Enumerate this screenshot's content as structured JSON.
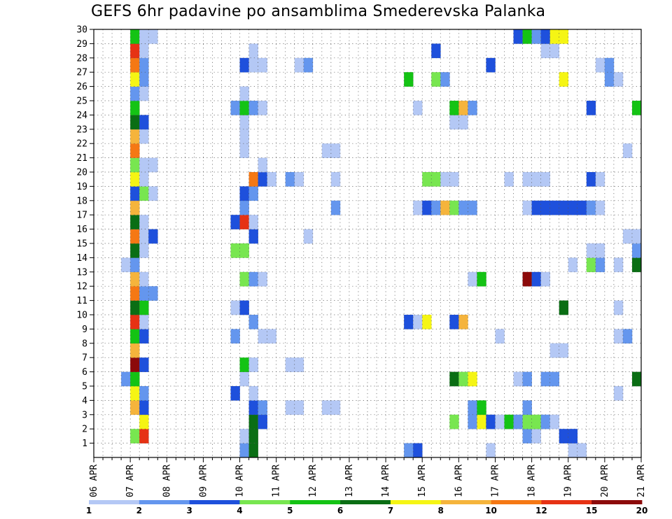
{
  "chart_data": {
    "type": "heatmap",
    "title": "GEFS 6hr padavine po ansamblima Smederevska Palanka",
    "xlabel": "",
    "ylabel": "",
    "grid": true,
    "x_range_days": [
      0,
      15
    ],
    "y_range": [
      0,
      30
    ],
    "x_ticks": [
      {
        "day": 0,
        "label": "06 APR"
      },
      {
        "day": 1,
        "label": "07 APR"
      },
      {
        "day": 2,
        "label": "08 APR"
      },
      {
        "day": 3,
        "label": "09 APR"
      },
      {
        "day": 4,
        "label": "10 APR"
      },
      {
        "day": 5,
        "label": "11 APR"
      },
      {
        "day": 6,
        "label": "12 APR"
      },
      {
        "day": 7,
        "label": "13 APR"
      },
      {
        "day": 8,
        "label": "14 APR"
      },
      {
        "day": 9,
        "label": "15 APR"
      },
      {
        "day": 10,
        "label": "16 APR"
      },
      {
        "day": 11,
        "label": "17 APR"
      },
      {
        "day": 12,
        "label": "18 APR"
      },
      {
        "day": 13,
        "label": "19 APR"
      },
      {
        "day": 14,
        "label": "20 APR"
      },
      {
        "day": 15,
        "label": "21 APR"
      }
    ],
    "y_ticks": [
      "1",
      "2",
      "3",
      "4",
      "5",
      "6",
      "7",
      "8",
      "9",
      "10",
      "11",
      "12",
      "13",
      "14",
      "15",
      "16",
      "17",
      "18",
      "19",
      "20",
      "21",
      "22",
      "23",
      "24",
      "25",
      "26",
      "27",
      "28",
      "29",
      "30"
    ],
    "legend": {
      "placement": "bottom",
      "colors": [
        "#b4c8f5",
        "#6496ee",
        "#1e50dc",
        "#78e650",
        "#14c314",
        "#0a6e14",
        "#f5f514",
        "#f5b43c",
        "#f57814",
        "#e63214",
        "#8c0a0a"
      ],
      "labels": [
        "1",
        "2",
        "3",
        "4",
        "5",
        "6",
        "7",
        "8",
        "10",
        "12",
        "15",
        "20"
      ]
    },
    "unit_step_hours": 6,
    "cells": [
      {
        "x": 4.0,
        "y": 0,
        "w": 1,
        "c": 1
      },
      {
        "x": 4.25,
        "y": 0,
        "w": 1,
        "c": 5
      },
      {
        "x": 8.5,
        "y": 0,
        "w": 1,
        "c": 1
      },
      {
        "x": 8.75,
        "y": 0,
        "w": 1,
        "c": 2
      },
      {
        "x": 10.75,
        "y": 0,
        "w": 1,
        "c": 0
      },
      {
        "x": 13.0,
        "y": 0,
        "w": 2,
        "c": 0
      },
      {
        "x": 1.0,
        "y": 1,
        "w": 1,
        "c": 3
      },
      {
        "x": 1.25,
        "y": 1,
        "w": 1,
        "c": 9
      },
      {
        "x": 4.0,
        "y": 1,
        "w": 1,
        "c": 0
      },
      {
        "x": 4.25,
        "y": 1,
        "w": 1,
        "c": 5
      },
      {
        "x": 11.75,
        "y": 1,
        "w": 1,
        "c": 1
      },
      {
        "x": 12.0,
        "y": 1,
        "w": 1,
        "c": 0
      },
      {
        "x": 12.75,
        "y": 1,
        "w": 2,
        "c": 2
      },
      {
        "x": 1.25,
        "y": 2,
        "w": 1,
        "c": 6
      },
      {
        "x": 4.25,
        "y": 2,
        "w": 1,
        "c": 5
      },
      {
        "x": 4.5,
        "y": 2,
        "w": 1,
        "c": 2
      },
      {
        "x": 9.75,
        "y": 2,
        "w": 1,
        "c": 3
      },
      {
        "x": 10.25,
        "y": 2,
        "w": 1,
        "c": 1
      },
      {
        "x": 10.5,
        "y": 2,
        "w": 1,
        "c": 6
      },
      {
        "x": 10.75,
        "y": 2,
        "w": 1,
        "c": 2
      },
      {
        "x": 11.0,
        "y": 2,
        "w": 1,
        "c": 0
      },
      {
        "x": 11.25,
        "y": 2,
        "w": 1,
        "c": 4
      },
      {
        "x": 11.5,
        "y": 2,
        "w": 1,
        "c": 1
      },
      {
        "x": 11.75,
        "y": 2,
        "w": 2,
        "c": 3
      },
      {
        "x": 12.25,
        "y": 2,
        "w": 1,
        "c": 1
      },
      {
        "x": 12.5,
        "y": 2,
        "w": 1,
        "c": 0
      },
      {
        "x": 1.0,
        "y": 3,
        "w": 1,
        "c": 7
      },
      {
        "x": 1.25,
        "y": 3,
        "w": 1,
        "c": 2
      },
      {
        "x": 4.25,
        "y": 3,
        "w": 1,
        "c": 2
      },
      {
        "x": 4.5,
        "y": 3,
        "w": 1,
        "c": 1
      },
      {
        "x": 5.25,
        "y": 3,
        "w": 2,
        "c": 0
      },
      {
        "x": 6.25,
        "y": 3,
        "w": 2,
        "c": 0
      },
      {
        "x": 10.25,
        "y": 3,
        "w": 1,
        "c": 1
      },
      {
        "x": 10.5,
        "y": 3,
        "w": 1,
        "c": 4
      },
      {
        "x": 11.75,
        "y": 3,
        "w": 1,
        "c": 1
      },
      {
        "x": 1.0,
        "y": 4,
        "w": 1,
        "c": 6
      },
      {
        "x": 1.25,
        "y": 4,
        "w": 1,
        "c": 1
      },
      {
        "x": 3.75,
        "y": 4,
        "w": 1,
        "c": 2
      },
      {
        "x": 4.25,
        "y": 4,
        "w": 1,
        "c": 0
      },
      {
        "x": 14.25,
        "y": 4,
        "w": 1,
        "c": 0
      },
      {
        "x": 0.75,
        "y": 5,
        "w": 1,
        "c": 1
      },
      {
        "x": 1.0,
        "y": 5,
        "w": 1,
        "c": 4
      },
      {
        "x": 4.0,
        "y": 5,
        "w": 1,
        "c": 0
      },
      {
        "x": 9.75,
        "y": 5,
        "w": 1,
        "c": 5
      },
      {
        "x": 10.0,
        "y": 5,
        "w": 1,
        "c": 3
      },
      {
        "x": 10.25,
        "y": 5,
        "w": 1,
        "c": 6
      },
      {
        "x": 11.5,
        "y": 5,
        "w": 1,
        "c": 0
      },
      {
        "x": 11.75,
        "y": 5,
        "w": 1,
        "c": 1
      },
      {
        "x": 12.25,
        "y": 5,
        "w": 2,
        "c": 1
      },
      {
        "x": 14.75,
        "y": 5,
        "w": 1,
        "c": 5
      },
      {
        "x": 1.0,
        "y": 6,
        "w": 1,
        "c": 10
      },
      {
        "x": 1.25,
        "y": 6,
        "w": 1,
        "c": 2
      },
      {
        "x": 4.0,
        "y": 6,
        "w": 1,
        "c": 4
      },
      {
        "x": 4.25,
        "y": 6,
        "w": 1,
        "c": 0
      },
      {
        "x": 5.25,
        "y": 6,
        "w": 2,
        "c": 0
      },
      {
        "x": 1.0,
        "y": 7,
        "w": 1,
        "c": 7
      },
      {
        "x": 12.5,
        "y": 7,
        "w": 2,
        "c": 0
      },
      {
        "x": 1.0,
        "y": 8,
        "w": 1,
        "c": 4
      },
      {
        "x": 1.25,
        "y": 8,
        "w": 1,
        "c": 2
      },
      {
        "x": 3.75,
        "y": 8,
        "w": 1,
        "c": 1
      },
      {
        "x": 4.5,
        "y": 8,
        "w": 2,
        "c": 0
      },
      {
        "x": 11.0,
        "y": 8,
        "w": 1,
        "c": 0
      },
      {
        "x": 14.25,
        "y": 8,
        "w": 1,
        "c": 0
      },
      {
        "x": 14.5,
        "y": 8,
        "w": 1,
        "c": 1
      },
      {
        "x": 1.0,
        "y": 9,
        "w": 1,
        "c": 9
      },
      {
        "x": 1.25,
        "y": 9,
        "w": 1,
        "c": 0
      },
      {
        "x": 4.25,
        "y": 9,
        "w": 1,
        "c": 1
      },
      {
        "x": 8.5,
        "y": 9,
        "w": 1,
        "c": 2
      },
      {
        "x": 8.75,
        "y": 9,
        "w": 1,
        "c": 0
      },
      {
        "x": 9.0,
        "y": 9,
        "w": 1,
        "c": 6
      },
      {
        "x": 9.75,
        "y": 9,
        "w": 1,
        "c": 2
      },
      {
        "x": 10.0,
        "y": 9,
        "w": 1,
        "c": 7
      },
      {
        "x": 1.0,
        "y": 10,
        "w": 1,
        "c": 5
      },
      {
        "x": 1.25,
        "y": 10,
        "w": 1,
        "c": 4
      },
      {
        "x": 3.75,
        "y": 10,
        "w": 1,
        "c": 0
      },
      {
        "x": 4.0,
        "y": 10,
        "w": 1,
        "c": 2
      },
      {
        "x": 12.75,
        "y": 10,
        "w": 1,
        "c": 5
      },
      {
        "x": 14.25,
        "y": 10,
        "w": 1,
        "c": 0
      },
      {
        "x": 1.0,
        "y": 11,
        "w": 1,
        "c": 8
      },
      {
        "x": 1.25,
        "y": 11,
        "w": 2,
        "c": 1
      },
      {
        "x": 1.0,
        "y": 12,
        "w": 1,
        "c": 7
      },
      {
        "x": 1.25,
        "y": 12,
        "w": 1,
        "c": 0
      },
      {
        "x": 4.0,
        "y": 12,
        "w": 1,
        "c": 3
      },
      {
        "x": 4.25,
        "y": 12,
        "w": 1,
        "c": 1
      },
      {
        "x": 4.5,
        "y": 12,
        "w": 1,
        "c": 0
      },
      {
        "x": 10.25,
        "y": 12,
        "w": 1,
        "c": 0
      },
      {
        "x": 10.5,
        "y": 12,
        "w": 1,
        "c": 4
      },
      {
        "x": 11.75,
        "y": 12,
        "w": 1,
        "c": 10
      },
      {
        "x": 12.0,
        "y": 12,
        "w": 1,
        "c": 2
      },
      {
        "x": 12.25,
        "y": 12,
        "w": 1,
        "c": 0
      },
      {
        "x": 0.75,
        "y": 13,
        "w": 1,
        "c": 0
      },
      {
        "x": 1.0,
        "y": 13,
        "w": 1,
        "c": 1
      },
      {
        "x": 13.0,
        "y": 13,
        "w": 1,
        "c": 0
      },
      {
        "x": 13.5,
        "y": 13,
        "w": 1,
        "c": 3
      },
      {
        "x": 13.75,
        "y": 13,
        "w": 1,
        "c": 1
      },
      {
        "x": 14.25,
        "y": 13,
        "w": 1,
        "c": 0
      },
      {
        "x": 14.75,
        "y": 13,
        "w": 1,
        "c": 5
      },
      {
        "x": 1.0,
        "y": 14,
        "w": 1,
        "c": 5
      },
      {
        "x": 1.25,
        "y": 14,
        "w": 1,
        "c": 0
      },
      {
        "x": 3.75,
        "y": 14,
        "w": 2,
        "c": 3
      },
      {
        "x": 13.5,
        "y": 14,
        "w": 2,
        "c": 0
      },
      {
        "x": 14.75,
        "y": 14,
        "w": 1,
        "c": 1
      },
      {
        "x": 1.0,
        "y": 15,
        "w": 1,
        "c": 8
      },
      {
        "x": 1.25,
        "y": 15,
        "w": 1,
        "c": 0
      },
      {
        "x": 1.5,
        "y": 15,
        "w": 1,
        "c": 2
      },
      {
        "x": 4.25,
        "y": 15,
        "w": 1,
        "c": 2
      },
      {
        "x": 5.75,
        "y": 15,
        "w": 1,
        "c": 0
      },
      {
        "x": 14.5,
        "y": 15,
        "w": 2,
        "c": 0
      },
      {
        "x": 1.0,
        "y": 16,
        "w": 1,
        "c": 5
      },
      {
        "x": 1.25,
        "y": 16,
        "w": 1,
        "c": 0
      },
      {
        "x": 3.75,
        "y": 16,
        "w": 1,
        "c": 2
      },
      {
        "x": 4.0,
        "y": 16,
        "w": 1,
        "c": 9
      },
      {
        "x": 4.25,
        "y": 16,
        "w": 1,
        "c": 0
      },
      {
        "x": 1.0,
        "y": 17,
        "w": 1,
        "c": 7
      },
      {
        "x": 4.0,
        "y": 17,
        "w": 1,
        "c": 1
      },
      {
        "x": 6.5,
        "y": 17,
        "w": 1,
        "c": 1
      },
      {
        "x": 8.75,
        "y": 17,
        "w": 1,
        "c": 0
      },
      {
        "x": 9.0,
        "y": 17,
        "w": 1,
        "c": 2
      },
      {
        "x": 9.25,
        "y": 17,
        "w": 1,
        "c": 1
      },
      {
        "x": 9.5,
        "y": 17,
        "w": 1,
        "c": 7
      },
      {
        "x": 9.75,
        "y": 17,
        "w": 1,
        "c": 3
      },
      {
        "x": 10.0,
        "y": 17,
        "w": 2,
        "c": 1
      },
      {
        "x": 11.75,
        "y": 17,
        "w": 1,
        "c": 0
      },
      {
        "x": 12.0,
        "y": 17,
        "w": 6,
        "c": 2
      },
      {
        "x": 13.5,
        "y": 17,
        "w": 1,
        "c": 1
      },
      {
        "x": 13.75,
        "y": 17,
        "w": 1,
        "c": 0
      },
      {
        "x": 1.0,
        "y": 18,
        "w": 1,
        "c": 2
      },
      {
        "x": 1.25,
        "y": 18,
        "w": 1,
        "c": 3
      },
      {
        "x": 1.5,
        "y": 18,
        "w": 1,
        "c": 0
      },
      {
        "x": 4.0,
        "y": 18,
        "w": 1,
        "c": 2
      },
      {
        "x": 4.25,
        "y": 18,
        "w": 1,
        "c": 1
      },
      {
        "x": 1.0,
        "y": 19,
        "w": 1,
        "c": 6
      },
      {
        "x": 1.25,
        "y": 19,
        "w": 1,
        "c": 0
      },
      {
        "x": 4.25,
        "y": 19,
        "w": 1,
        "c": 8
      },
      {
        "x": 4.5,
        "y": 19,
        "w": 1,
        "c": 2
      },
      {
        "x": 4.75,
        "y": 19,
        "w": 1,
        "c": 0
      },
      {
        "x": 5.25,
        "y": 19,
        "w": 1,
        "c": 1
      },
      {
        "x": 5.5,
        "y": 19,
        "w": 1,
        "c": 0
      },
      {
        "x": 6.5,
        "y": 19,
        "w": 1,
        "c": 0
      },
      {
        "x": 9.0,
        "y": 19,
        "w": 2,
        "c": 3
      },
      {
        "x": 9.5,
        "y": 19,
        "w": 2,
        "c": 0
      },
      {
        "x": 11.25,
        "y": 19,
        "w": 1,
        "c": 0
      },
      {
        "x": 11.75,
        "y": 19,
        "w": 3,
        "c": 0
      },
      {
        "x": 13.5,
        "y": 19,
        "w": 1,
        "c": 2
      },
      {
        "x": 13.75,
        "y": 19,
        "w": 1,
        "c": 0
      },
      {
        "x": 1.0,
        "y": 20,
        "w": 1,
        "c": 3
      },
      {
        "x": 1.25,
        "y": 20,
        "w": 2,
        "c": 0
      },
      {
        "x": 4.5,
        "y": 20,
        "w": 1,
        "c": 0
      },
      {
        "x": 1.0,
        "y": 21,
        "w": 1,
        "c": 8
      },
      {
        "x": 4.0,
        "y": 21,
        "w": 1,
        "c": 0
      },
      {
        "x": 6.25,
        "y": 21,
        "w": 2,
        "c": 0
      },
      {
        "x": 14.5,
        "y": 21,
        "w": 1,
        "c": 0
      },
      {
        "x": 1.0,
        "y": 22,
        "w": 1,
        "c": 7
      },
      {
        "x": 1.25,
        "y": 22,
        "w": 1,
        "c": 0
      },
      {
        "x": 4.0,
        "y": 22,
        "w": 1,
        "c": 0
      },
      {
        "x": 1.0,
        "y": 23,
        "w": 1,
        "c": 5
      },
      {
        "x": 1.25,
        "y": 23,
        "w": 1,
        "c": 2
      },
      {
        "x": 4.0,
        "y": 23,
        "w": 1,
        "c": 0
      },
      {
        "x": 9.75,
        "y": 23,
        "w": 2,
        "c": 0
      },
      {
        "x": 1.0,
        "y": 24,
        "w": 1,
        "c": 4
      },
      {
        "x": 3.75,
        "y": 24,
        "w": 1,
        "c": 1
      },
      {
        "x": 4.0,
        "y": 24,
        "w": 1,
        "c": 4
      },
      {
        "x": 4.25,
        "y": 24,
        "w": 1,
        "c": 1
      },
      {
        "x": 4.5,
        "y": 24,
        "w": 1,
        "c": 0
      },
      {
        "x": 8.75,
        "y": 24,
        "w": 1,
        "c": 0
      },
      {
        "x": 9.75,
        "y": 24,
        "w": 1,
        "c": 4
      },
      {
        "x": 10.0,
        "y": 24,
        "w": 1,
        "c": 7
      },
      {
        "x": 10.25,
        "y": 24,
        "w": 1,
        "c": 1
      },
      {
        "x": 13.5,
        "y": 24,
        "w": 1,
        "c": 2
      },
      {
        "x": 14.75,
        "y": 24,
        "w": 1,
        "c": 4
      },
      {
        "x": 1.0,
        "y": 25,
        "w": 1,
        "c": 1
      },
      {
        "x": 1.25,
        "y": 25,
        "w": 1,
        "c": 0
      },
      {
        "x": 4.0,
        "y": 25,
        "w": 1,
        "c": 0
      },
      {
        "x": 1.0,
        "y": 26,
        "w": 1,
        "c": 6
      },
      {
        "x": 1.25,
        "y": 26,
        "w": 1,
        "c": 1
      },
      {
        "x": 8.5,
        "y": 26,
        "w": 1,
        "c": 4
      },
      {
        "x": 9.25,
        "y": 26,
        "w": 1,
        "c": 3
      },
      {
        "x": 9.5,
        "y": 26,
        "w": 1,
        "c": 1
      },
      {
        "x": 12.75,
        "y": 26,
        "w": 1,
        "c": 6
      },
      {
        "x": 14.0,
        "y": 26,
        "w": 1,
        "c": 1
      },
      {
        "x": 14.25,
        "y": 26,
        "w": 1,
        "c": 0
      },
      {
        "x": 1.0,
        "y": 27,
        "w": 1,
        "c": 8
      },
      {
        "x": 1.25,
        "y": 27,
        "w": 1,
        "c": 1
      },
      {
        "x": 4.0,
        "y": 27,
        "w": 1,
        "c": 2
      },
      {
        "x": 4.25,
        "y": 27,
        "w": 2,
        "c": 0
      },
      {
        "x": 5.5,
        "y": 27,
        "w": 1,
        "c": 0
      },
      {
        "x": 5.75,
        "y": 27,
        "w": 1,
        "c": 1
      },
      {
        "x": 10.75,
        "y": 27,
        "w": 1,
        "c": 2
      },
      {
        "x": 13.75,
        "y": 27,
        "w": 1,
        "c": 0
      },
      {
        "x": 14.0,
        "y": 27,
        "w": 1,
        "c": 1
      },
      {
        "x": 1.0,
        "y": 28,
        "w": 1,
        "c": 9
      },
      {
        "x": 1.25,
        "y": 28,
        "w": 1,
        "c": 0
      },
      {
        "x": 4.25,
        "y": 28,
        "w": 1,
        "c": 0
      },
      {
        "x": 9.25,
        "y": 28,
        "w": 1,
        "c": 2
      },
      {
        "x": 12.25,
        "y": 28,
        "w": 2,
        "c": 0
      },
      {
        "x": 1.0,
        "y": 29,
        "w": 1,
        "c": 4
      },
      {
        "x": 1.25,
        "y": 29,
        "w": 2,
        "c": 0
      },
      {
        "x": 11.5,
        "y": 29,
        "w": 1,
        "c": 2
      },
      {
        "x": 11.75,
        "y": 29,
        "w": 1,
        "c": 4
      },
      {
        "x": 12.0,
        "y": 29,
        "w": 1,
        "c": 1
      },
      {
        "x": 12.25,
        "y": 29,
        "w": 1,
        "c": 2
      },
      {
        "x": 12.5,
        "y": 29,
        "w": 2,
        "c": 6
      }
    ]
  }
}
